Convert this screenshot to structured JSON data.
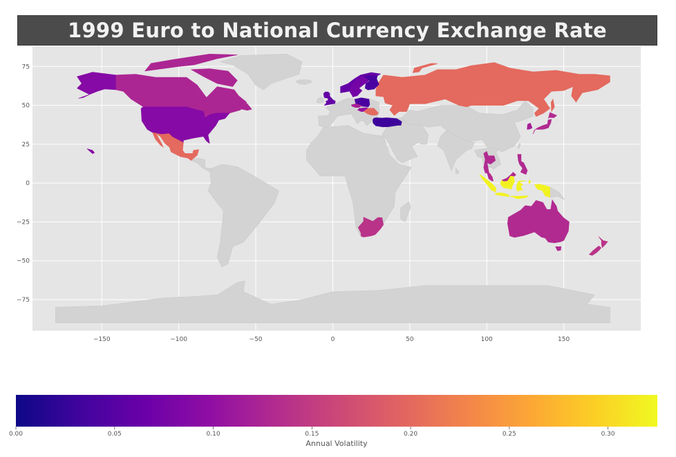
{
  "chart_data": {
    "type": "choropleth",
    "title": "1999 Euro to National Currency Exchange Rate",
    "value_label": "Annual Volatility",
    "colormap": "plasma",
    "color_range": [
      0.0,
      0.325
    ],
    "xlim": [
      -195,
      200
    ],
    "ylim": [
      -95,
      88
    ],
    "x_ticks": [
      -150,
      -100,
      -50,
      0,
      50,
      100,
      150
    ],
    "y_ticks": [
      75,
      50,
      25,
      0,
      -25,
      -50,
      -75
    ],
    "colorbar_ticks": [
      "0.00",
      "0.05",
      "0.10",
      "0.15",
      "0.20",
      "0.25",
      "0.30"
    ],
    "grid": true,
    "background_color": "#e5e5e5",
    "no_data_color": "#d3d3d3",
    "regions": [
      {
        "name": "Canada",
        "value": 0.125
      },
      {
        "name": "United States",
        "value": 0.09
      },
      {
        "name": "Mexico",
        "value": 0.2
      },
      {
        "name": "Russia",
        "value": 0.2
      },
      {
        "name": "Norway",
        "value": 0.06
      },
      {
        "name": "Sweden",
        "value": 0.075
      },
      {
        "name": "Finland",
        "value": 0.04
      },
      {
        "name": "Poland",
        "value": 0.04
      },
      {
        "name": "United Kingdom",
        "value": 0.06
      },
      {
        "name": "Czechia",
        "value": 0.12
      },
      {
        "name": "Hungary",
        "value": 0.1
      },
      {
        "name": "Romania",
        "value": 0.2
      },
      {
        "name": "Turkey",
        "value": 0.03
      },
      {
        "name": "Japan",
        "value": 0.13
      },
      {
        "name": "South Korea",
        "value": 0.12
      },
      {
        "name": "Thailand",
        "value": 0.13
      },
      {
        "name": "Philippines",
        "value": 0.13
      },
      {
        "name": "Malaysia",
        "value": 0.13
      },
      {
        "name": "Indonesia",
        "value": 0.32
      },
      {
        "name": "Australia",
        "value": 0.13
      },
      {
        "name": "New Zealand",
        "value": 0.14
      },
      {
        "name": "South Africa",
        "value": 0.14
      }
    ]
  }
}
